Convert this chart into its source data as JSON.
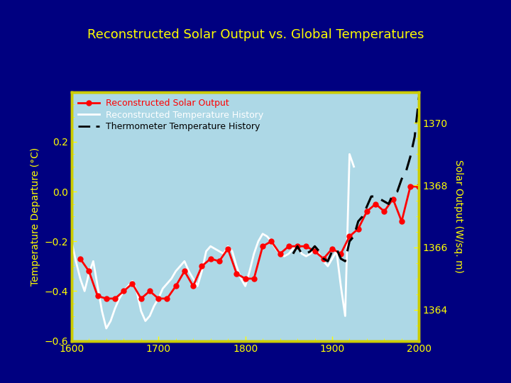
{
  "title": "Reconstructed Solar Output vs. Global Temperatures",
  "title_color": "#FFFF00",
  "bg_color": "#000080",
  "plot_bg_color": "#ADD8E6",
  "plot_edge_color": "#CCCC00",
  "ylabel_left_color": "#FFFF00",
  "ylabel_right_color": "#FFFF00",
  "tick_color": "#FFFF00",
  "tick_label_color": "#FFFF00",
  "xlim": [
    1600,
    2000
  ],
  "ylim_left": [
    -0.6,
    0.4
  ],
  "ylim_right": [
    1363,
    1371
  ],
  "yticks_left": [
    -0.6,
    -0.4,
    -0.2,
    0.0,
    0.2
  ],
  "yticks_right": [
    1364,
    1366,
    1368,
    1370
  ],
  "xticks": [
    1600,
    1700,
    1800,
    1900,
    2000
  ],
  "ylabel_left": "Temperature Departure (°C)",
  "ylabel_right": "Solar Output (W/sq. m)",
  "legend_solar_label": "Reconstructed Solar Output",
  "legend_temp_label": "Reconstructed Temperature History",
  "legend_thermo_label": "Thermometer Temperature History",
  "solar_color": "#FF0000",
  "temp_color": "#FFFFFF",
  "thermo_color": "#000000",
  "solar_years": [
    1610,
    1620,
    1630,
    1640,
    1650,
    1660,
    1670,
    1680,
    1690,
    1700,
    1710,
    1720,
    1730,
    1740,
    1750,
    1760,
    1770,
    1780,
    1790,
    1800,
    1810,
    1820,
    1830,
    1840,
    1850,
    1860,
    1870,
    1880,
    1890,
    1900,
    1910,
    1920,
    1930,
    1940,
    1950,
    1960,
    1970,
    1980,
    1990,
    2000
  ],
  "solar_vals": [
    -0.27,
    -0.32,
    -0.42,
    -0.43,
    -0.43,
    -0.4,
    -0.37,
    -0.43,
    -0.4,
    -0.43,
    -0.43,
    -0.38,
    -0.32,
    -0.38,
    -0.3,
    -0.27,
    -0.28,
    -0.23,
    -0.33,
    -0.35,
    -0.35,
    -0.22,
    -0.2,
    -0.25,
    -0.22,
    -0.22,
    -0.22,
    -0.24,
    -0.27,
    -0.23,
    -0.25,
    -0.18,
    -0.15,
    -0.08,
    -0.05,
    -0.08,
    -0.03,
    -0.12,
    0.02,
    0.02
  ],
  "temp_years": [
    1600,
    1605,
    1610,
    1615,
    1620,
    1625,
    1630,
    1635,
    1640,
    1645,
    1650,
    1655,
    1660,
    1665,
    1670,
    1675,
    1680,
    1685,
    1690,
    1695,
    1700,
    1705,
    1710,
    1715,
    1720,
    1725,
    1730,
    1735,
    1740,
    1745,
    1750,
    1755,
    1760,
    1765,
    1770,
    1775,
    1780,
    1785,
    1790,
    1795,
    1800,
    1805,
    1810,
    1815,
    1820,
    1825,
    1830,
    1835,
    1840,
    1845,
    1850,
    1855,
    1860,
    1865,
    1870,
    1875,
    1880,
    1885,
    1890,
    1895,
    1900,
    1905,
    1910,
    1915,
    1920,
    1925
  ],
  "temp_vals": [
    -0.2,
    -0.28,
    -0.35,
    -0.4,
    -0.33,
    -0.28,
    -0.38,
    -0.48,
    -0.55,
    -0.52,
    -0.47,
    -0.43,
    -0.4,
    -0.38,
    -0.36,
    -0.4,
    -0.48,
    -0.52,
    -0.5,
    -0.46,
    -0.43,
    -0.39,
    -0.37,
    -0.35,
    -0.32,
    -0.3,
    -0.28,
    -0.32,
    -0.35,
    -0.38,
    -0.32,
    -0.24,
    -0.22,
    -0.23,
    -0.24,
    -0.25,
    -0.22,
    -0.24,
    -0.3,
    -0.35,
    -0.38,
    -0.32,
    -0.25,
    -0.2,
    -0.17,
    -0.18,
    -0.2,
    -0.23,
    -0.25,
    -0.26,
    -0.25,
    -0.23,
    -0.22,
    -0.25,
    -0.26,
    -0.25,
    -0.23,
    -0.25,
    -0.28,
    -0.3,
    -0.27,
    -0.24,
    -0.38,
    -0.5,
    0.15,
    0.1
  ],
  "thermo_years": [
    1855,
    1860,
    1865,
    1870,
    1875,
    1880,
    1885,
    1890,
    1895,
    1900,
    1905,
    1910,
    1915,
    1920,
    1925,
    1930,
    1935,
    1940,
    1945,
    1950,
    1955,
    1960,
    1965,
    1970,
    1975,
    1980,
    1985,
    1990,
    1995,
    2000
  ],
  "thermo_vals": [
    -0.25,
    -0.22,
    -0.25,
    -0.25,
    -0.24,
    -0.22,
    -0.24,
    -0.27,
    -0.28,
    -0.24,
    -0.23,
    -0.27,
    -0.28,
    -0.2,
    -0.18,
    -0.12,
    -0.1,
    -0.06,
    -0.02,
    -0.02,
    -0.03,
    -0.04,
    -0.05,
    -0.01,
    0.0,
    0.05,
    0.08,
    0.14,
    0.22,
    0.38
  ]
}
